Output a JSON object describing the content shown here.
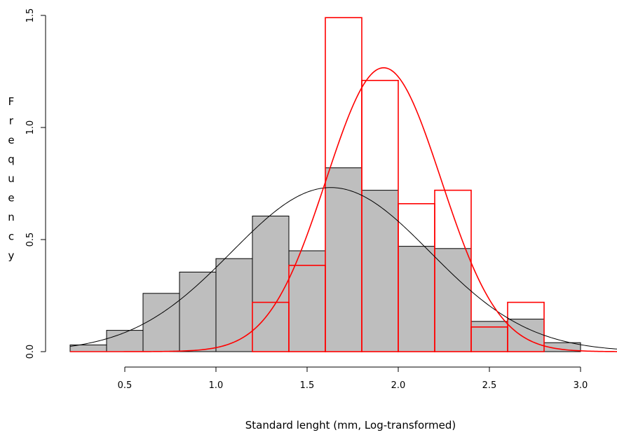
{
  "chart_data": {
    "type": "bar",
    "xlabel": "Standard lenght (mm, Log-transformed)",
    "ylabel": "Frequency",
    "xlim": [
      0.2,
      3.2
    ],
    "ylim": [
      0,
      1.5
    ],
    "x_ticks": [
      0.5,
      1.0,
      1.5,
      2.0,
      2.5,
      3.0
    ],
    "x_tick_labels": [
      "0.5",
      "1.0",
      "1.5",
      "2.0",
      "2.5",
      "3.0"
    ],
    "y_ticks": [
      0,
      0.5,
      1.0,
      1.5
    ],
    "y_tick_labels": [
      "0.0",
      "0.5",
      "1.0",
      "1.5"
    ],
    "bin_width": 0.2,
    "grid": false,
    "series": [
      {
        "kind": "histogram",
        "fill": "#bebebe",
        "stroke": "#000000",
        "bin_starts": [
          0.2,
          0.4,
          0.6,
          0.8,
          1.0,
          1.2,
          1.4,
          1.6,
          1.8,
          2.0,
          2.2,
          2.4,
          2.6,
          2.8,
          3.0
        ],
        "values": [
          0.03,
          0.095,
          0.26,
          0.355,
          0.415,
          0.605,
          0.45,
          0.82,
          0.72,
          0.47,
          0.46,
          0.135,
          0.145,
          0.04,
          0.0
        ]
      },
      {
        "kind": "histogram",
        "fill": "none",
        "stroke": "#ff0000",
        "bin_starts": [
          0.2,
          0.4,
          0.6,
          0.8,
          1.0,
          1.2,
          1.4,
          1.6,
          1.8,
          2.0,
          2.2,
          2.4,
          2.6,
          2.8,
          3.0
        ],
        "values": [
          0,
          0,
          0,
          0,
          0,
          0.22,
          0.385,
          1.49,
          1.21,
          0.66,
          0.72,
          0.11,
          0.22,
          0,
          0
        ]
      },
      {
        "kind": "normal_curve",
        "stroke": "#000000",
        "mean": 1.63,
        "sd": 0.545
      },
      {
        "kind": "normal_curve",
        "stroke": "#ff0000",
        "mean": 1.92,
        "sd": 0.315
      }
    ]
  }
}
